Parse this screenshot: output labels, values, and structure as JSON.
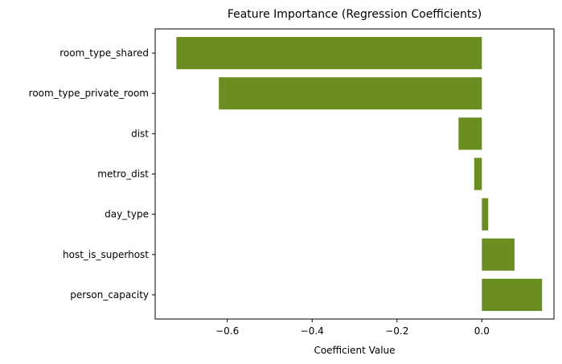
{
  "chart_data": {
    "type": "bar",
    "orientation": "horizontal",
    "title": "Feature Importance (Regression Coefficients)",
    "xlabel": "Coefficient Value",
    "ylabel": "",
    "categories": [
      "room_type_shared",
      "room_type_private_room",
      "dist",
      "metro_dist",
      "day_type",
      "host_is_superhost",
      "person_capacity"
    ],
    "values": [
      -0.72,
      -0.62,
      -0.055,
      -0.018,
      0.015,
      0.077,
      0.142
    ],
    "xlim": [
      -0.77,
      0.17
    ],
    "xticks": [
      -0.6,
      -0.4,
      -0.2,
      0.0
    ],
    "xtick_labels": [
      "−0.6",
      "−0.4",
      "−0.2",
      "0.0"
    ],
    "bar_color": "#6b8e23",
    "grid": false,
    "legend": "none"
  }
}
